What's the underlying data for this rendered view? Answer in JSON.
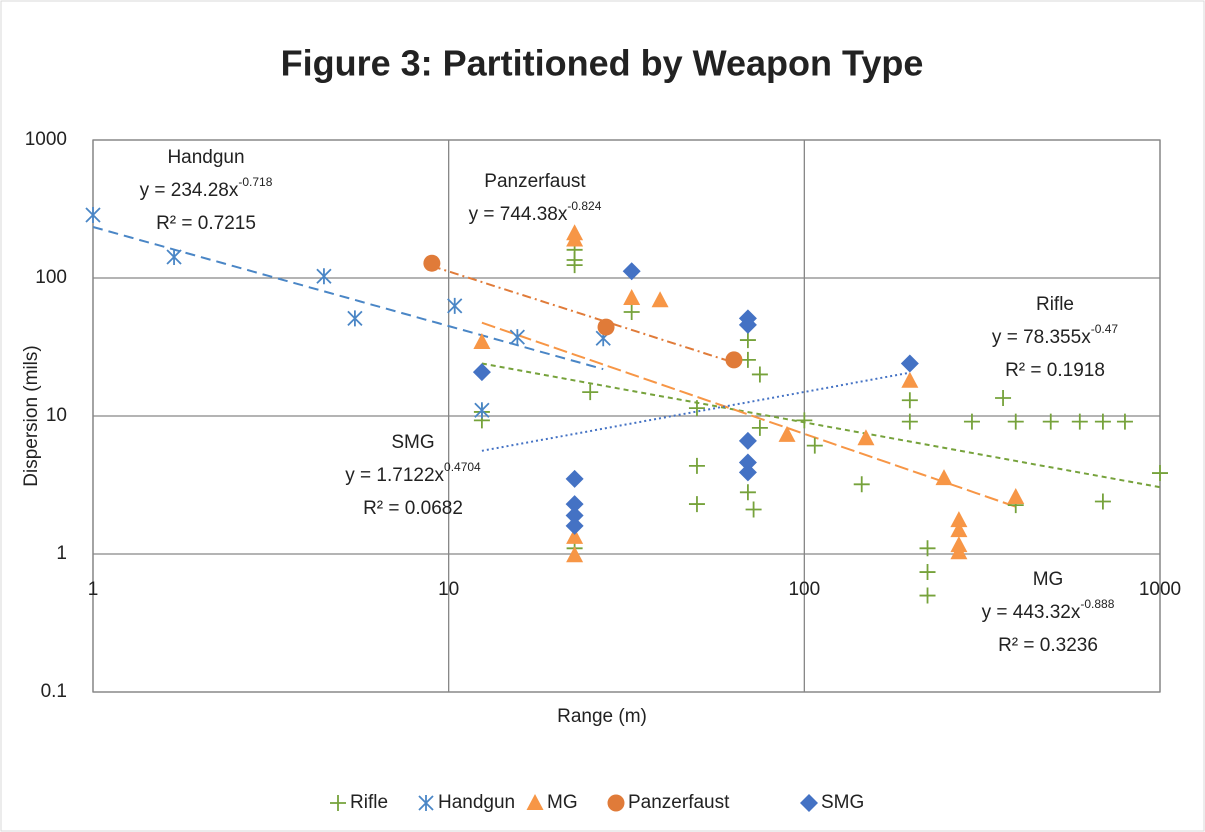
{
  "chart_data": {
    "type": "scatter",
    "title": "Figure 3: Partitioned by Weapon Type",
    "x_label": "Range (m)",
    "y_label": "Dispersion (mils)",
    "x_scale": "log",
    "y_scale": "log",
    "grid": true,
    "legend": "bottom",
    "xlim": [
      1,
      1000
    ],
    "xticks": [
      1,
      10,
      100,
      1000
    ],
    "ylim": [
      0.1,
      1000
    ],
    "yticks": [
      0.1,
      1,
      10,
      100,
      1000
    ],
    "series": [
      {
        "name": "Rifle",
        "color": "#76a23b",
        "marker": "plus",
        "x": [
          12.4,
          12.4,
          22.6,
          22.6,
          22.6,
          25,
          32.7,
          22.6,
          49.9,
          49.9,
          49.9,
          69.4,
          69.4,
          69.4,
          72,
          75,
          75,
          107,
          100,
          145,
          198,
          198,
          222,
          222,
          222,
          296,
          362,
          393,
          393,
          493,
          595,
          691,
          691,
          797,
          1000
        ],
        "values": [
          10.7,
          9.3,
          135,
          160,
          124,
          14.9,
          56.7,
          1.1,
          11.4,
          4.35,
          2.3,
          35.5,
          25.5,
          2.8,
          2.1,
          20,
          8.2,
          6.1,
          9.3,
          3.2,
          13,
          9.1,
          1.1,
          0.74,
          0.5,
          9.1,
          13.5,
          9.1,
          2.26,
          9.1,
          9.1,
          9.1,
          2.4,
          9.1,
          3.86
        ],
        "trendline": {
          "coefficient": 78.355,
          "exponent": -0.47,
          "dash": "short-dash",
          "equation": "y = 78.355x",
          "exponent_label": "-0.47",
          "r2_label": "R² = 0.1918"
        }
      },
      {
        "name": "Handgun",
        "color": "#4a86c6",
        "marker": "star",
        "x": [
          1,
          1.69,
          4.46,
          5.45,
          10.4,
          15.6,
          27.2,
          12.4
        ],
        "values": [
          286,
          142,
          103,
          51,
          62.8,
          37.3,
          36.6,
          11
        ],
        "trendline": {
          "coefficient": 234.28,
          "exponent": -0.718,
          "dash": "dashed",
          "equation": "y = 234.28x",
          "exponent_label": "-0.718",
          "r2_label": "R² = 0.7215"
        }
      },
      {
        "name": "MG",
        "color": "#f79646",
        "marker": "triangle",
        "x": [
          12.4,
          22.6,
          22.6,
          32.7,
          39.3,
          22.6,
          22.6,
          89.4,
          149,
          198,
          247,
          272,
          272,
          272,
          272,
          393
        ],
        "values": [
          34.4,
          211,
          190,
          71.6,
          69,
          1.33,
          0.98,
          7.3,
          6.9,
          18,
          3.55,
          1.76,
          1.49,
          1.16,
          1.03,
          2.59
        ],
        "trendline": {
          "coefficient": 443.32,
          "exponent": -0.888,
          "dash": "long-dash",
          "equation": "y = 443.32x",
          "exponent_label": "-0.888",
          "r2_label": "R² = 0.3236"
        }
      },
      {
        "name": "Panzerfaust",
        "color": "#e07b39",
        "marker": "circle",
        "x": [
          8.97,
          27.7,
          63.4
        ],
        "values": [
          128,
          44.1,
          25.5
        ],
        "trendline": {
          "coefficient": 744.38,
          "exponent": -0.824,
          "dash": "dash-dot",
          "equation": "y = 744.38x",
          "exponent_label": "-0.824"
        }
      },
      {
        "name": "SMG",
        "color": "#4472c4",
        "marker": "diamond",
        "x": [
          12.4,
          22.6,
          22.6,
          22.6,
          22.6,
          32.7,
          69.4,
          69.4,
          69.4,
          69.4,
          69.4,
          198
        ],
        "values": [
          20.8,
          3.5,
          2.3,
          1.9,
          1.6,
          112,
          51,
          45.7,
          6.6,
          4.6,
          3.9,
          24
        ],
        "trendline": {
          "coefficient": 1.7122,
          "exponent": 0.4704,
          "dash": "dotted",
          "equation": "y = 1.7122x",
          "exponent_label": "0.4704",
          "r2_label": "R² = 0.0682"
        }
      }
    ]
  }
}
